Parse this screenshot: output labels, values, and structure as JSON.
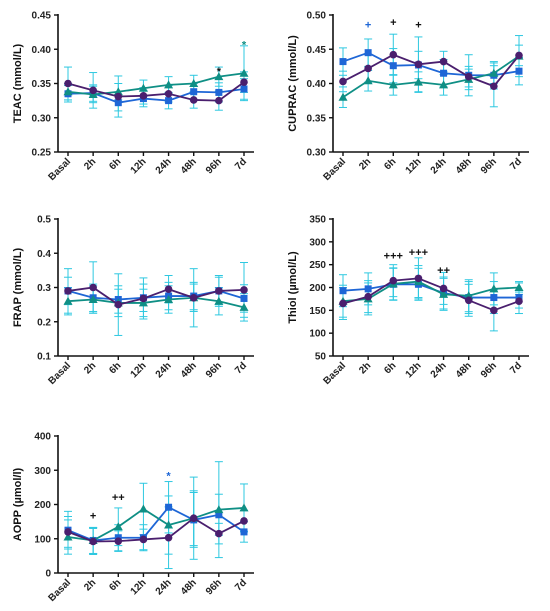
{
  "colors": {
    "axis": "#111111",
    "error_bar": "#2ec8e0",
    "series": [
      "#1e66d6",
      "#0f8f85",
      "#4a1f6e"
    ]
  },
  "markers": [
    "square",
    "triangle",
    "circle"
  ],
  "chart_data": [
    {
      "type": "line",
      "title": "",
      "ylabel": "TEAC (mmol/L)",
      "categories": [
        "Basal",
        "2h",
        "6h",
        "12h",
        "24h",
        "48h",
        "96h",
        "7d"
      ],
      "ylim": [
        0.25,
        0.45
      ],
      "yticks": [
        "0.25",
        "0.30",
        "0.35",
        "0.40",
        "0.45"
      ],
      "series": [
        {
          "values": [
            0.335,
            0.336,
            0.322,
            0.328,
            0.325,
            0.338,
            0.337,
            0.342
          ],
          "err": [
            0.012,
            0.012,
            0.012,
            0.012,
            0.012,
            0.012,
            0.014,
            0.015
          ]
        },
        {
          "values": [
            0.338,
            0.334,
            0.338,
            0.343,
            0.348,
            0.35,
            0.36,
            0.365
          ],
          "err": [
            0.012,
            0.012,
            0.012,
            0.012,
            0.012,
            0.012,
            0.014,
            0.04
          ]
        },
        {
          "values": [
            0.35,
            0.34,
            0.331,
            0.332,
            0.335,
            0.326,
            0.325,
            0.352
          ],
          "err": [
            0.024,
            0.026,
            0.03,
            0.012,
            0.012,
            0.012,
            0.014,
            0.015
          ]
        }
      ],
      "annotations": [
        {
          "category": "96h",
          "text": "*",
          "series": 2,
          "y": 0.368
        },
        {
          "category": "7d",
          "text": "*",
          "series": 1,
          "y": 0.407
        }
      ]
    },
    {
      "type": "line",
      "title": "",
      "ylabel": "CUPRAC (mmol/L)",
      "categories": [
        "Basal",
        "2h",
        "6h",
        "12h",
        "24h",
        "48h",
        "96h",
        "7d"
      ],
      "ylim": [
        0.3,
        0.5
      ],
      "yticks": [
        "0.30",
        "0.35",
        "0.40",
        "0.45",
        "0.50"
      ],
      "series": [
        {
          "values": [
            0.432,
            0.445,
            0.426,
            0.427,
            0.415,
            0.412,
            0.412,
            0.418
          ],
          "err": [
            0.02,
            0.02,
            0.025,
            0.02,
            0.02,
            0.03,
            0.02,
            0.02
          ]
        },
        {
          "values": [
            0.38,
            0.404,
            0.398,
            0.402,
            0.398,
            0.406,
            0.415,
            0.44
          ],
          "err": [
            0.015,
            0.015,
            0.015,
            0.015,
            0.015,
            0.015,
            0.015,
            0.03
          ]
        },
        {
          "values": [
            0.403,
            0.422,
            0.442,
            0.428,
            0.432,
            0.41,
            0.396,
            0.441
          ],
          "err": [
            0.015,
            0.02,
            0.03,
            0.04,
            0.015,
            0.015,
            0.03,
            0.015
          ]
        }
      ],
      "annotations": [
        {
          "category": "2h",
          "text": "+",
          "series": 0,
          "y": 0.486
        },
        {
          "category": "6h",
          "text": "+",
          "series": 2,
          "y": 0.49
        },
        {
          "category": "12h",
          "text": "+",
          "series": 2,
          "y": 0.486
        }
      ]
    },
    {
      "type": "line",
      "title": "",
      "ylabel": "FRAP (mmol/L)",
      "categories": [
        "Basal",
        "2h",
        "6h",
        "12h",
        "24h",
        "48h",
        "96h",
        "7d"
      ],
      "ylim": [
        0.1,
        0.5
      ],
      "yticks": [
        "0.1",
        "0.2",
        "0.3",
        "0.4",
        "0.5"
      ],
      "series": [
        {
          "values": [
            0.29,
            0.27,
            0.265,
            0.27,
            0.275,
            0.275,
            0.29,
            0.268
          ],
          "err": [
            0.04,
            0.04,
            0.04,
            0.04,
            0.04,
            0.04,
            0.04,
            0.04
          ]
        },
        {
          "values": [
            0.26,
            0.265,
            0.255,
            0.255,
            0.265,
            0.27,
            0.26,
            0.242
          ],
          "err": [
            0.04,
            0.04,
            0.04,
            0.04,
            0.04,
            0.04,
            0.04,
            0.04
          ]
        },
        {
          "values": [
            0.29,
            0.3,
            0.25,
            0.268,
            0.295,
            0.27,
            0.29,
            0.293
          ],
          "err": [
            0.065,
            0.075,
            0.09,
            0.06,
            0.04,
            0.085,
            0.045,
            0.08
          ]
        }
      ],
      "annotations": []
    },
    {
      "type": "line",
      "title": "",
      "ylabel": "Thiol (µmol/L)",
      "categories": [
        "Basal",
        "2h",
        "6h",
        "12h",
        "24h",
        "48h",
        "96h",
        "7d"
      ],
      "ylim": [
        50,
        350
      ],
      "yticks": [
        "50",
        "100",
        "150",
        "200",
        "250",
        "300",
        "350"
      ],
      "series": [
        {
          "values": [
            193,
            197,
            207,
            207,
            188,
            178,
            178,
            178
          ],
          "err": [
            35,
            35,
            35,
            35,
            35,
            35,
            35,
            35
          ]
        },
        {
          "values": [
            170,
            175,
            208,
            213,
            185,
            182,
            197,
            200
          ],
          "err": [
            35,
            35,
            35,
            35,
            35,
            35,
            35,
            10
          ]
        },
        {
          "values": [
            165,
            180,
            215,
            220,
            198,
            172,
            150,
            170
          ],
          "err": [
            35,
            35,
            35,
            45,
            35,
            35,
            45,
            15
          ]
        }
      ],
      "annotations": [
        {
          "category": "6h",
          "text": "+++",
          "series": 2,
          "y": 270
        },
        {
          "category": "12h",
          "text": "+++",
          "series": 2,
          "y": 278
        },
        {
          "category": "24h",
          "text": "++",
          "series": 2,
          "y": 238
        }
      ]
    },
    {
      "type": "line",
      "title": "",
      "ylabel": "AOPP (µmol/l)",
      "categories": [
        "Basal",
        "2h",
        "6h",
        "12h",
        "24h",
        "48h",
        "96h",
        "7d"
      ],
      "ylim": [
        0,
        400
      ],
      "yticks": [
        "0",
        "100",
        "200",
        "300",
        "400"
      ],
      "series": [
        {
          "values": [
            125,
            95,
            103,
            103,
            192,
            155,
            170,
            120
          ],
          "err": [
            55,
            38,
            38,
            38,
            75,
            80,
            60,
            30
          ]
        },
        {
          "values": [
            105,
            95,
            135,
            187,
            140,
            160,
            185,
            190
          ],
          "err": [
            50,
            38,
            55,
            75,
            85,
            80,
            140,
            70
          ]
        },
        {
          "values": [
            120,
            92,
            93,
            98,
            103,
            160,
            115,
            152
          ],
          "err": [
            45,
            38,
            30,
            30,
            90,
            120,
            30,
            30
          ]
        }
      ],
      "annotations": [
        {
          "category": "2h",
          "text": "+",
          "series": 2,
          "y": 168
        },
        {
          "category": "6h",
          "text": "++",
          "series": 2,
          "y": 222
        },
        {
          "category": "24h",
          "text": "*",
          "series": 0,
          "y": 285
        }
      ]
    }
  ]
}
